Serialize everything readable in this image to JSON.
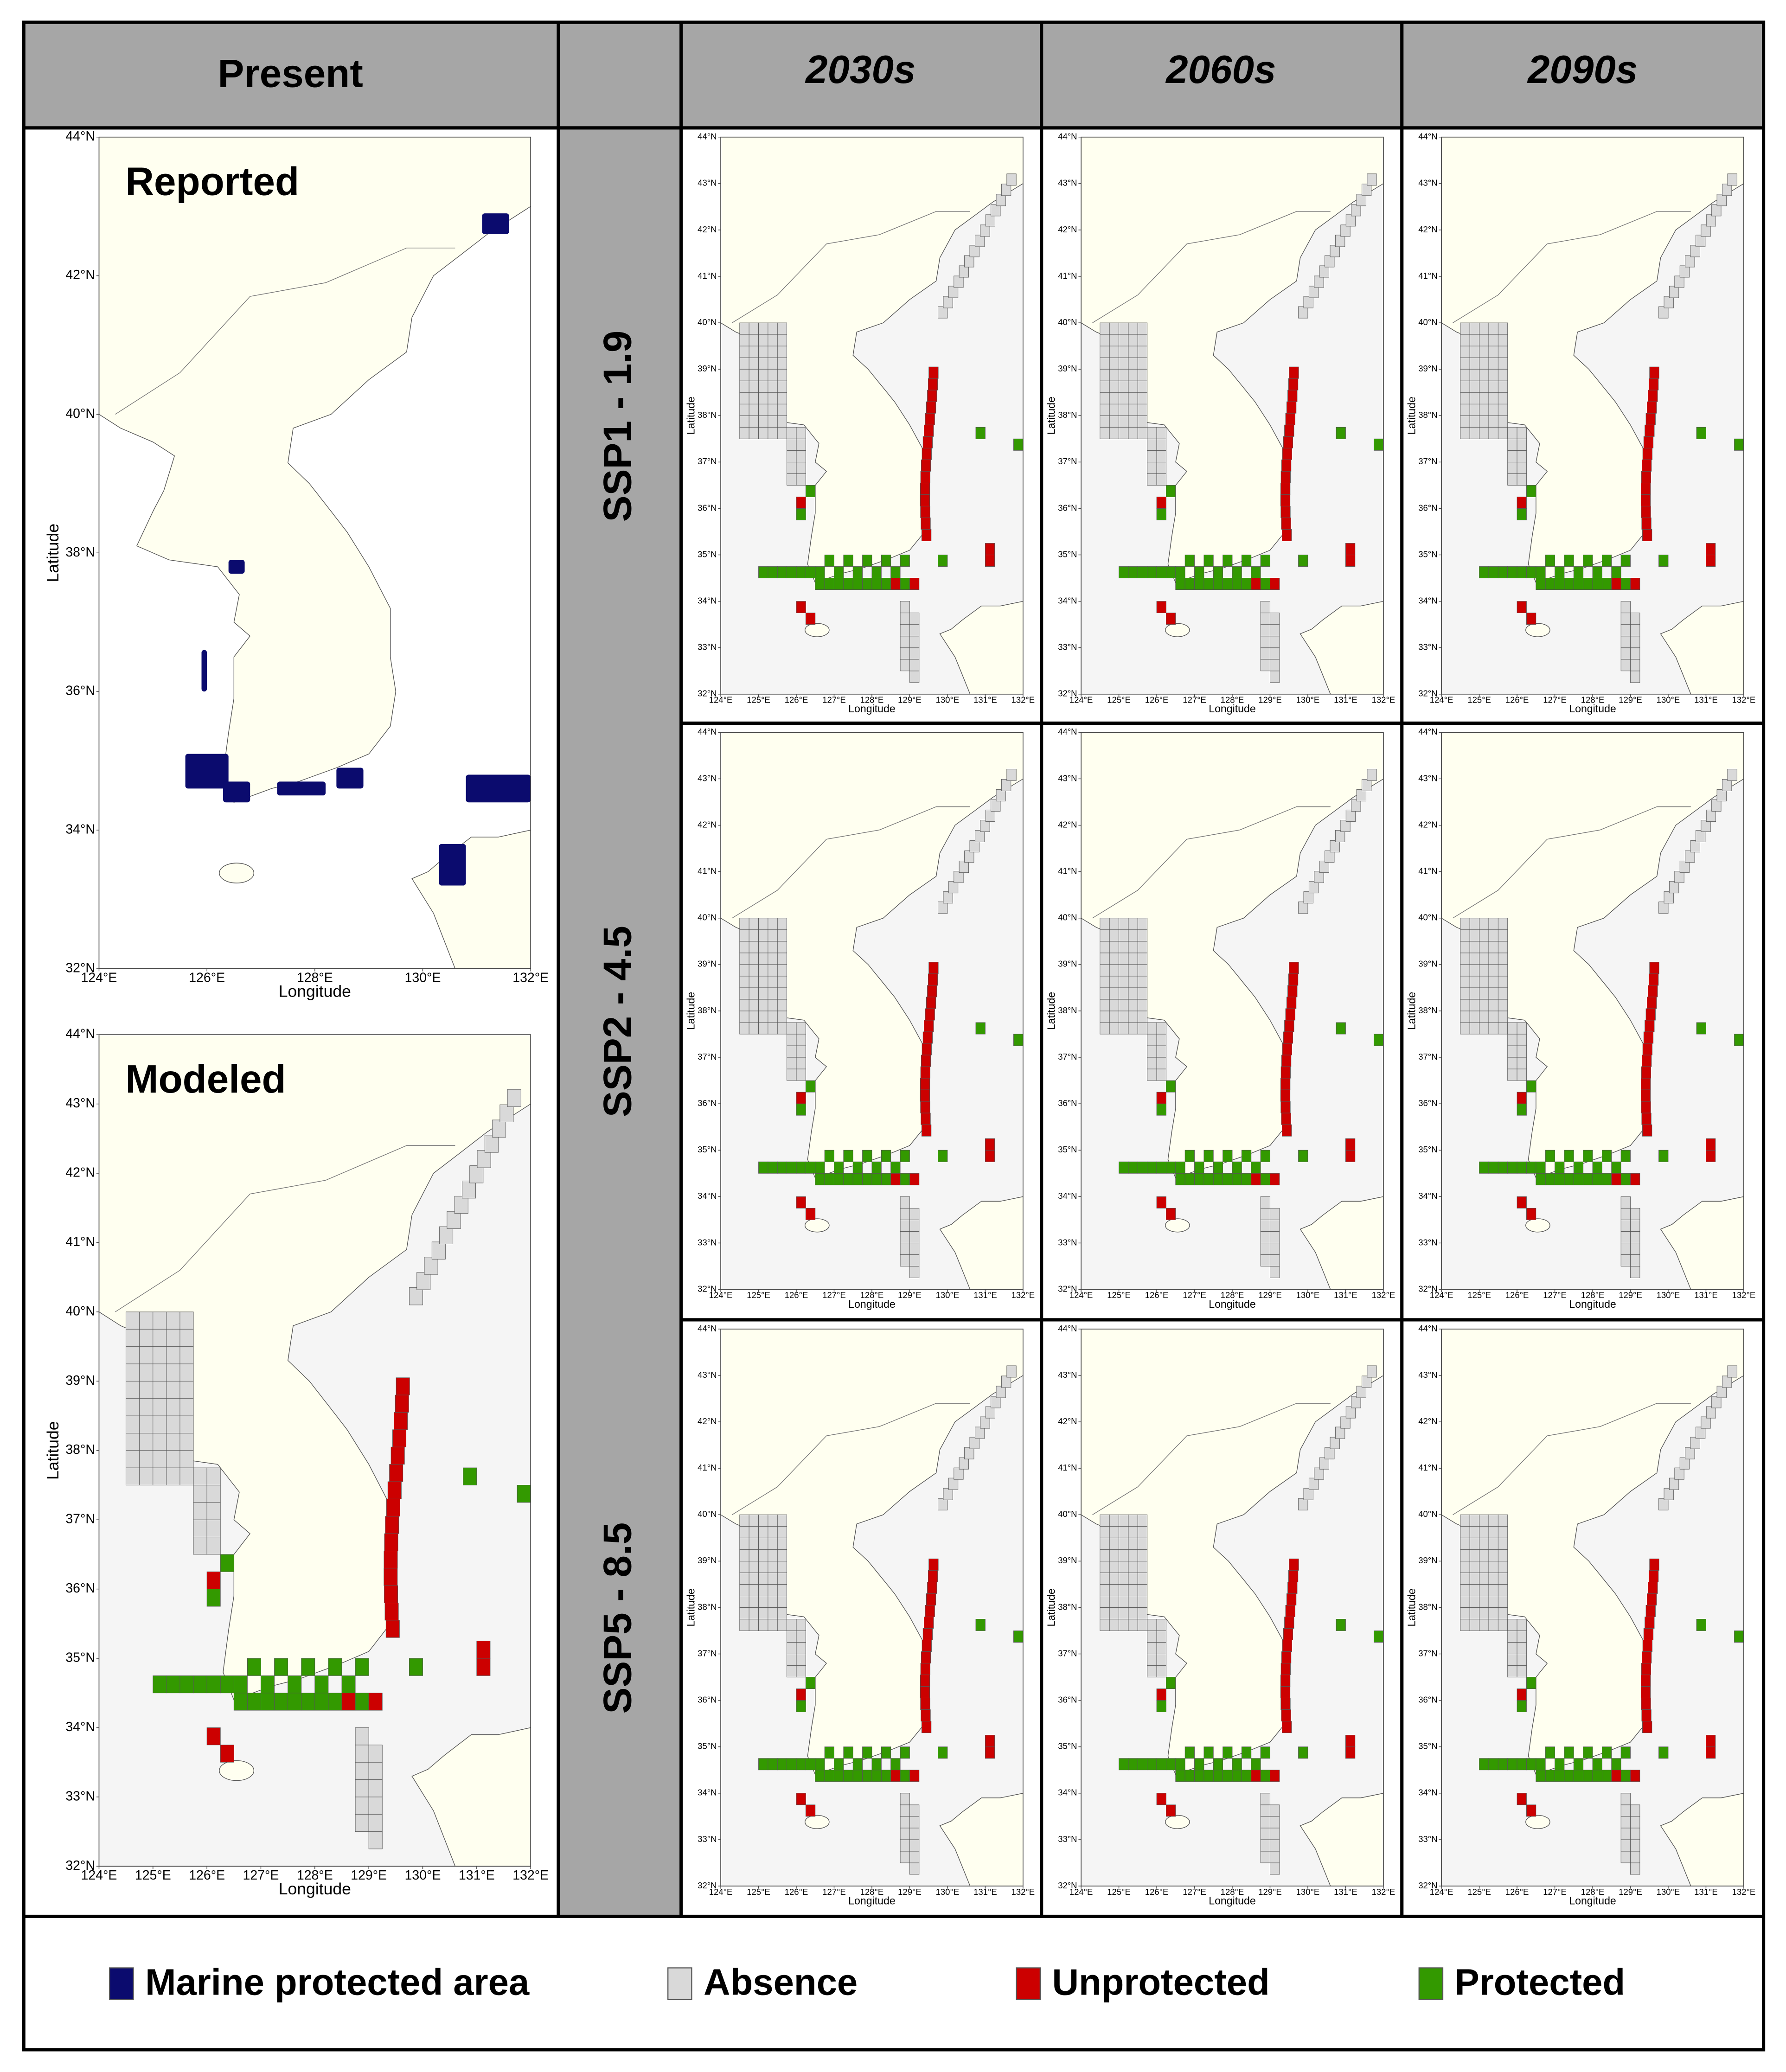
{
  "header": {
    "present": "Present",
    "periods": [
      "2030s",
      "2060s",
      "2090s"
    ]
  },
  "scenarios": [
    "SSP1 - 1.9",
    "SSP2 - 4.5",
    "SSP5 - 8.5"
  ],
  "maps": {
    "reported": {
      "label": "Reported",
      "xlabel": "Longitude",
      "ylabel": "Latitude",
      "xticks": [
        {
          "value": 124,
          "label": "124°E"
        },
        {
          "value": 126,
          "label": "126°E"
        },
        {
          "value": 128,
          "label": "128°E"
        },
        {
          "value": 130,
          "label": "130°E"
        },
        {
          "value": 132,
          "label": "132°E"
        }
      ],
      "yticks": [
        {
          "value": 44,
          "label": "44°N"
        },
        {
          "value": 42,
          "label": "42°N"
        },
        {
          "value": 40,
          "label": "40°N"
        },
        {
          "value": 38,
          "label": "38°N"
        },
        {
          "value": 36,
          "label": "36°N"
        },
        {
          "value": 34,
          "label": "34°N"
        },
        {
          "value": 32,
          "label": "32°N"
        }
      ]
    },
    "modeled": {
      "label": "Modeled",
      "xlabel": "Longitude",
      "ylabel": "Latitude",
      "xticks": [
        {
          "value": 124,
          "label": "124°E"
        },
        {
          "value": 125,
          "label": "125°E"
        },
        {
          "value": 126,
          "label": "126°E"
        },
        {
          "value": 127,
          "label": "127°E"
        },
        {
          "value": 128,
          "label": "128°E"
        },
        {
          "value": 129,
          "label": "129°E"
        },
        {
          "value": 130,
          "label": "130°E"
        },
        {
          "value": 131,
          "label": "131°E"
        },
        {
          "value": 132,
          "label": "132°E"
        }
      ],
      "yticks": [
        {
          "value": 44,
          "label": "44°N"
        },
        {
          "value": 43,
          "label": "43°N"
        },
        {
          "value": 42,
          "label": "42°N"
        },
        {
          "value": 41,
          "label": "41°N"
        },
        {
          "value": 40,
          "label": "40°N"
        },
        {
          "value": 39,
          "label": "39°N"
        },
        {
          "value": 38,
          "label": "38°N"
        },
        {
          "value": 37,
          "label": "37°N"
        },
        {
          "value": 36,
          "label": "36°N"
        },
        {
          "value": 35,
          "label": "35°N"
        },
        {
          "value": 34,
          "label": "34°N"
        },
        {
          "value": 33,
          "label": "33°N"
        },
        {
          "value": 32,
          "label": "32°N"
        }
      ]
    },
    "projection": {
      "xlabel": "Longitude",
      "ylabel": "Latitude",
      "xticks": [
        {
          "value": 124,
          "label": "124°E"
        },
        {
          "value": 125,
          "label": "125°E"
        },
        {
          "value": 126,
          "label": "126°E"
        },
        {
          "value": 127,
          "label": "127°E"
        },
        {
          "value": 128,
          "label": "128°E"
        },
        {
          "value": 129,
          "label": "129°E"
        },
        {
          "value": 130,
          "label": "130°E"
        },
        {
          "value": 131,
          "label": "131°E"
        },
        {
          "value": 132,
          "label": "132°E"
        }
      ],
      "yticks": [
        {
          "value": 44,
          "label": "44°N"
        },
        {
          "value": 43,
          "label": "43°N"
        },
        {
          "value": 42,
          "label": "42°N"
        },
        {
          "value": 41,
          "label": "41°N"
        },
        {
          "value": 40,
          "label": "40°N"
        },
        {
          "value": 39,
          "label": "39°N"
        },
        {
          "value": 38,
          "label": "38°N"
        },
        {
          "value": 37,
          "label": "37°N"
        },
        {
          "value": 36,
          "label": "36°N"
        },
        {
          "value": 35,
          "label": "35°N"
        },
        {
          "value": 34,
          "label": "34°N"
        },
        {
          "value": 33,
          "label": "33°N"
        },
        {
          "value": 32,
          "label": "32°N"
        }
      ]
    }
  },
  "legend": [
    {
      "label": "Marine protected area",
      "color": "#0b0b6e"
    },
    {
      "label": "Absence",
      "color": "#d9d9d9"
    },
    {
      "label": "Unprotected",
      "color": "#cc0000"
    },
    {
      "label": "Protected",
      "color": "#339900"
    }
  ]
}
